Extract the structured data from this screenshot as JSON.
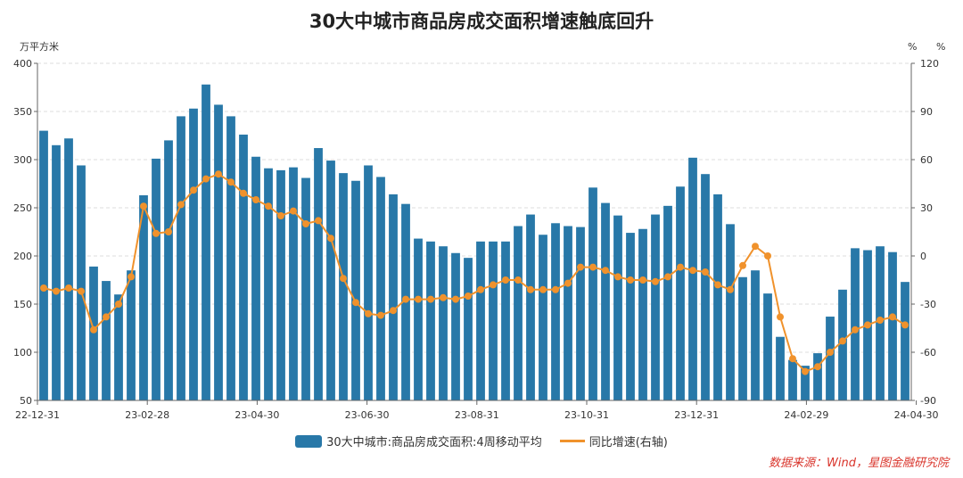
{
  "title": "30大中城市商品房成交面积增速触底回升",
  "source": "数据来源：Wind，星图金融研究院",
  "colors": {
    "bar": "#2878a8",
    "line": "#f0922c",
    "grid": "#dddddd",
    "source": "#d9342b"
  },
  "chart_data": {
    "type": "bar",
    "title": "30大中城市商品房成交面积增速触底回升",
    "left_axis": {
      "unit": "万平方米",
      "ylim": [
        50,
        400
      ],
      "ticks": [
        50,
        100,
        150,
        200,
        250,
        300,
        350,
        400
      ]
    },
    "right_axis": {
      "unit_labels": [
        "%",
        "%"
      ],
      "ylim": [
        -90,
        120
      ],
      "ticks": [
        -90,
        -60,
        -30,
        0,
        30,
        60,
        90,
        120
      ]
    },
    "x_tick_labels": [
      "22-12-31",
      "23-02-28",
      "23-04-30",
      "23-06-30",
      "23-08-31",
      "23-10-31",
      "23-12-31",
      "24-02-29",
      "24-04-30"
    ],
    "x_tick_positions": [
      0,
      8.8,
      17.6,
      26.4,
      35.2,
      44.0,
      52.8,
      61.6,
      70.4
    ],
    "grid": true,
    "legend_position": "bottom",
    "series": [
      {
        "name": "30大中城市:商品房成交面积:4周移动平均",
        "type": "bar",
        "axis": "left",
        "values": [
          330,
          315,
          322,
          294,
          189,
          174,
          160,
          185,
          263,
          301,
          320,
          345,
          353,
          378,
          357,
          345,
          326,
          303,
          291,
          289,
          292,
          281,
          312,
          299,
          286,
          278,
          294,
          282,
          264,
          254,
          218,
          215,
          210,
          203,
          198,
          215,
          215,
          215,
          231,
          243,
          222,
          234,
          231,
          230,
          271,
          255,
          242,
          224,
          228,
          243,
          252,
          272,
          302,
          285,
          264,
          233,
          178,
          185,
          161,
          116,
          92,
          86,
          99,
          137,
          165,
          208,
          206,
          210,
          204,
          173
        ]
      },
      {
        "name": "同比增速(右轴)",
        "type": "line",
        "axis": "right",
        "values": [
          -20,
          -22,
          -20,
          -22,
          -46,
          -38,
          -30,
          -13,
          31,
          14,
          15,
          32,
          41,
          48,
          51,
          46,
          39,
          35,
          31,
          25,
          28,
          20,
          22,
          11,
          -14,
          -29,
          -36,
          -37,
          -34,
          -27,
          -27,
          -27,
          -26,
          -27,
          -25,
          -21,
          -18,
          -15,
          -15,
          -21,
          -21,
          -21,
          -17,
          -7,
          -7,
          -9,
          -13,
          -15,
          -15,
          -16,
          -13,
          -7,
          -9,
          -10,
          -18,
          -21,
          -6,
          6,
          0,
          -38,
          -64,
          -72,
          -69,
          -60,
          -53,
          -46,
          -43,
          -40,
          -38,
          -43
        ]
      }
    ]
  }
}
